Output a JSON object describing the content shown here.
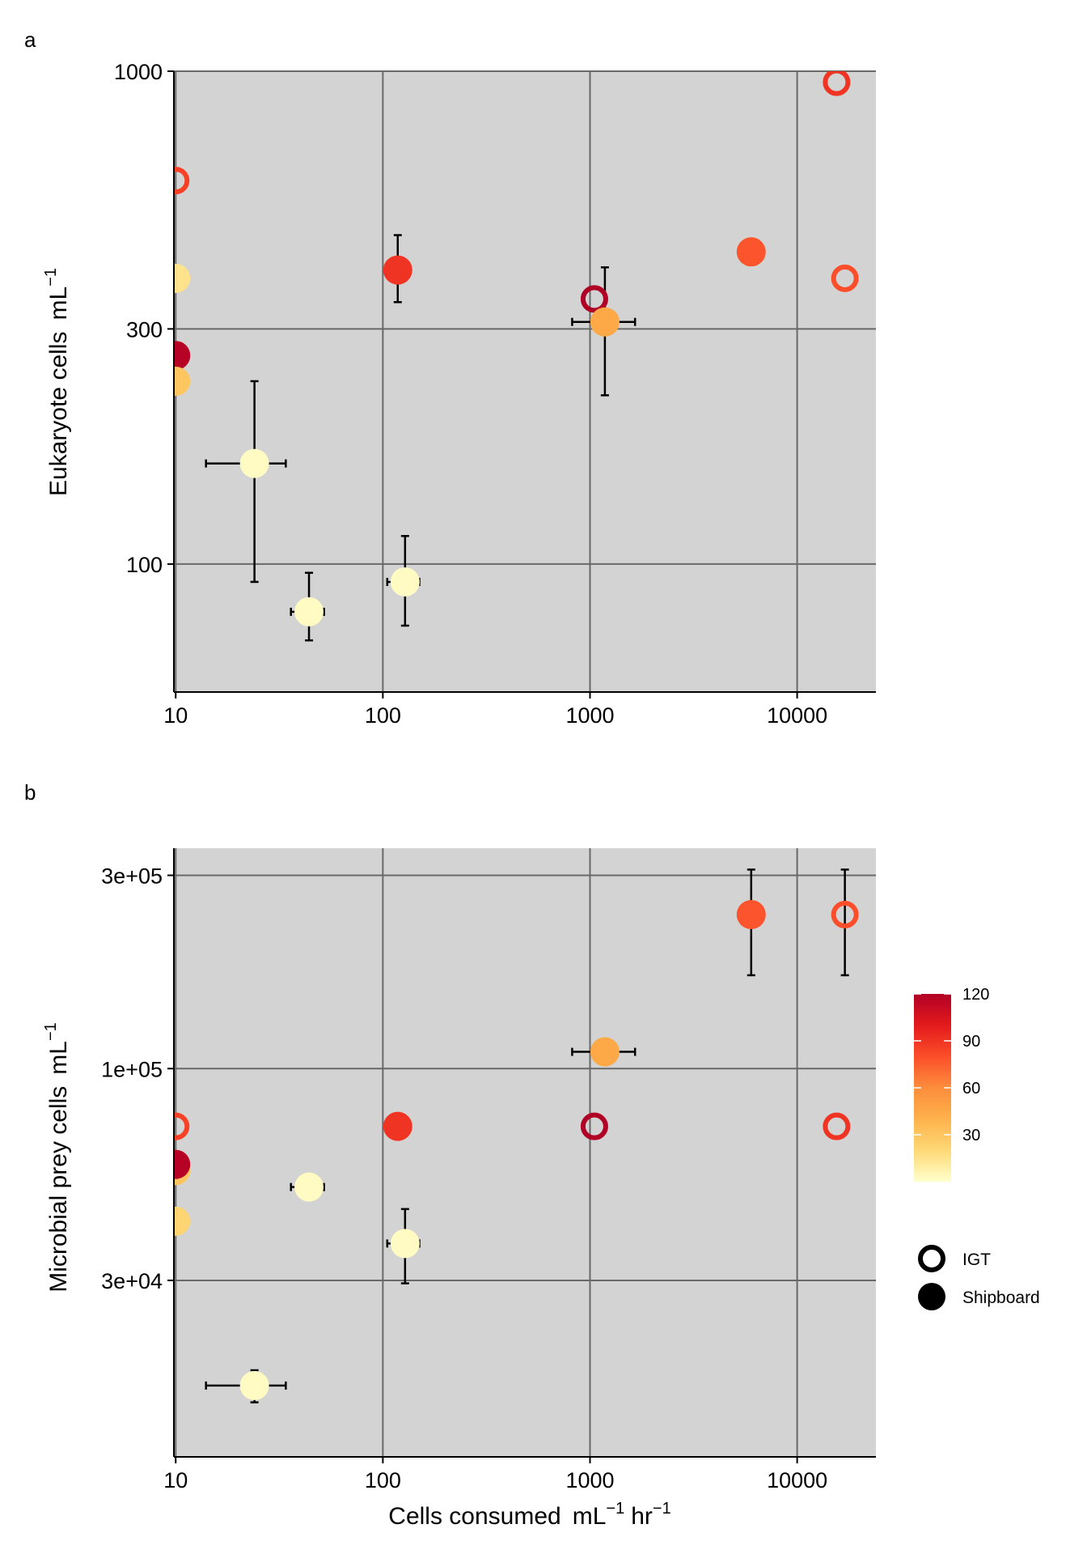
{
  "panel_labels": [
    "a",
    "b"
  ],
  "chart_data": [
    {
      "type": "scatter",
      "panel": "a",
      "ylabel": "Eukaryote cells",
      "ylabel_unit_base": "mL",
      "ylabel_unit_exp": "−1",
      "x_scale": "log10",
      "y_scale": "log10",
      "xlim": [
        9.8,
        24000
      ],
      "ylim": [
        55,
        1000
      ],
      "x_ticks": [
        10,
        100,
        1000,
        10000
      ],
      "x_tick_labels": [
        "10",
        "100",
        "1000",
        "10000"
      ],
      "y_ticks": [
        100,
        300,
        1000
      ],
      "y_tick_labels": [
        "100",
        "300",
        "1000"
      ],
      "grid": true,
      "points": [
        {
          "x": 10,
          "y": 600,
          "color_value": 85,
          "type": "IGT"
        },
        {
          "x": 10,
          "y": 380,
          "color_value": 15,
          "type": "Shipboard"
        },
        {
          "x": 10,
          "y": 265,
          "color_value": 118,
          "type": "Shipboard"
        },
        {
          "x": 10,
          "y": 235,
          "color_value": 30,
          "type": "Shipboard"
        },
        {
          "x": 24,
          "y": 160,
          "color_value": 2,
          "type": "Shipboard",
          "x_err": [
            14,
            34
          ],
          "y_err": [
            92,
            235
          ]
        },
        {
          "x": 44,
          "y": 80,
          "color_value": 2,
          "type": "Shipboard",
          "x_err": [
            36,
            52
          ],
          "y_err": [
            70,
            96
          ]
        },
        {
          "x": 118,
          "y": 395,
          "color_value": 90,
          "type": "Shipboard",
          "x_err": [
            105,
            130
          ],
          "y_err": [
            340,
            465
          ]
        },
        {
          "x": 128,
          "y": 92,
          "color_value": 2,
          "type": "Shipboard",
          "x_err": [
            105,
            150
          ],
          "y_err": [
            75,
            114
          ]
        },
        {
          "x": 1050,
          "y": 345,
          "color_value": 120,
          "type": "IGT"
        },
        {
          "x": 1180,
          "y": 310,
          "color_value": 45,
          "type": "Shipboard",
          "x_err": [
            820,
            1650
          ],
          "y_err": [
            220,
            400
          ]
        },
        {
          "x": 6000,
          "y": 430,
          "color_value": 78,
          "type": "Shipboard"
        },
        {
          "x": 15500,
          "y": 950,
          "color_value": 90,
          "type": "IGT"
        },
        {
          "x": 17000,
          "y": 380,
          "color_value": 80,
          "type": "IGT"
        }
      ]
    },
    {
      "type": "scatter",
      "panel": "b",
      "xlabel": "Cells consumed",
      "xlabel_unit_base_1": "mL",
      "xlabel_unit_exp_1": "−1",
      "xlabel_unit_base_2": "hr",
      "xlabel_unit_exp_2": "−1",
      "ylabel": "Microbial prey cells",
      "ylabel_unit_base": "mL",
      "ylabel_unit_exp": "−1",
      "x_scale": "log10",
      "y_scale": "log10",
      "xlim": [
        9.8,
        24000
      ],
      "ylim": [
        11000,
        350000
      ],
      "x_ticks": [
        10,
        100,
        1000,
        10000
      ],
      "x_tick_labels": [
        "10",
        "100",
        "1000",
        "10000"
      ],
      "y_ticks": [
        30000,
        100000,
        300000
      ],
      "y_tick_labels": [
        "3e+04",
        "1e+05",
        "3e+05"
      ],
      "grid": true,
      "points": [
        {
          "x": 10,
          "y": 72000,
          "color_value": 85,
          "type": "IGT"
        },
        {
          "x": 10,
          "y": 56000,
          "color_value": 30,
          "type": "Shipboard"
        },
        {
          "x": 10,
          "y": 58000,
          "color_value": 118,
          "type": "Shipboard"
        },
        {
          "x": 10,
          "y": 42000,
          "color_value": 22,
          "type": "Shipboard"
        },
        {
          "x": 24,
          "y": 16500,
          "color_value": 2,
          "type": "Shipboard",
          "x_err": [
            14,
            34
          ],
          "y_err": [
            15000,
            18000
          ]
        },
        {
          "x": 44,
          "y": 51000,
          "color_value": 2,
          "type": "Shipboard",
          "x_err": [
            36,
            52
          ],
          "y_err": [
            48000,
            53500
          ]
        },
        {
          "x": 118,
          "y": 72000,
          "color_value": 90,
          "type": "Shipboard",
          "x_err": [
            105,
            130
          ],
          "y_err": [
            70000,
            74000
          ]
        },
        {
          "x": 128,
          "y": 37000,
          "color_value": 2,
          "type": "Shipboard",
          "x_err": [
            105,
            150
          ],
          "y_err": [
            29500,
            45000
          ]
        },
        {
          "x": 1050,
          "y": 72000,
          "color_value": 120,
          "type": "IGT"
        },
        {
          "x": 1180,
          "y": 110000,
          "color_value": 45,
          "type": "Shipboard",
          "x_err": [
            820,
            1650
          ],
          "y_err": [
            108000,
            112000
          ]
        },
        {
          "x": 6000,
          "y": 240000,
          "color_value": 78,
          "type": "Shipboard",
          "y_err": [
            170000,
            310000
          ]
        },
        {
          "x": 15500,
          "y": 72000,
          "color_value": 90,
          "type": "IGT"
        },
        {
          "x": 17000,
          "y": 240000,
          "color_value": 80,
          "type": "IGT",
          "y_err": [
            170000,
            310000
          ]
        }
      ]
    }
  ],
  "legend": {
    "colorbar_ticks": [
      120,
      90,
      60,
      30
    ],
    "colorbar_tick_labels": [
      "120",
      "90",
      "60",
      "30"
    ],
    "colorbar_range": [
      0,
      120
    ],
    "colorbar_colors": [
      "#ffffcc",
      "#fed976",
      "#feb24c",
      "#fd8d3c",
      "#fc4e2a",
      "#e31a1c",
      "#b10026"
    ],
    "shape_entries": [
      {
        "label": "IGT",
        "style": "hollow"
      },
      {
        "label": "Shipboard",
        "style": "filled"
      }
    ]
  },
  "colors": {
    "panel_background": "#d3d3d3",
    "grid": "#696969",
    "errorbar": "#000000"
  }
}
